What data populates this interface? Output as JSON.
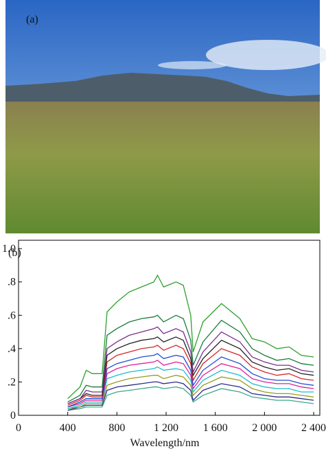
{
  "photo": {
    "label": "(a)"
  },
  "chart_data": {
    "type": "line",
    "panel_label": "(b)",
    "x_label": "Wavelength/nm",
    "x": [
      400,
      500,
      550,
      600,
      680,
      720,
      800,
      900,
      1000,
      1100,
      1130,
      1180,
      1280,
      1340,
      1400,
      1420,
      1500,
      1650,
      1800,
      1900,
      2000,
      2100,
      2200,
      2300,
      2400
    ],
    "series": [
      {
        "color": "#2ca02c",
        "values": [
          0.1,
          0.17,
          0.27,
          0.25,
          0.25,
          0.62,
          0.68,
          0.74,
          0.77,
          0.8,
          0.84,
          0.77,
          0.8,
          0.78,
          0.6,
          0.38,
          0.56,
          0.67,
          0.58,
          0.46,
          0.44,
          0.4,
          0.41,
          0.36,
          0.35
        ]
      },
      {
        "color": "#1a7a3a",
        "values": [
          0.08,
          0.12,
          0.18,
          0.17,
          0.17,
          0.48,
          0.52,
          0.56,
          0.58,
          0.59,
          0.6,
          0.56,
          0.6,
          0.58,
          0.45,
          0.3,
          0.44,
          0.57,
          0.5,
          0.4,
          0.36,
          0.33,
          0.34,
          0.31,
          0.3
        ]
      },
      {
        "color": "#7b2d8e",
        "values": [
          0.07,
          0.1,
          0.15,
          0.14,
          0.14,
          0.4,
          0.44,
          0.48,
          0.5,
          0.52,
          0.53,
          0.49,
          0.52,
          0.5,
          0.38,
          0.26,
          0.38,
          0.5,
          0.44,
          0.35,
          0.32,
          0.3,
          0.3,
          0.27,
          0.26
        ]
      },
      {
        "color": "#222222",
        "values": [
          0.07,
          0.1,
          0.13,
          0.12,
          0.12,
          0.36,
          0.4,
          0.43,
          0.45,
          0.46,
          0.47,
          0.44,
          0.47,
          0.45,
          0.34,
          0.24,
          0.34,
          0.45,
          0.4,
          0.32,
          0.29,
          0.27,
          0.28,
          0.25,
          0.24
        ]
      },
      {
        "color": "#d62728",
        "values": [
          0.06,
          0.09,
          0.12,
          0.11,
          0.11,
          0.32,
          0.36,
          0.38,
          0.4,
          0.41,
          0.42,
          0.39,
          0.42,
          0.4,
          0.31,
          0.21,
          0.31,
          0.4,
          0.36,
          0.29,
          0.26,
          0.24,
          0.25,
          0.22,
          0.21
        ]
      },
      {
        "color": "#1f4fd0",
        "values": [
          0.05,
          0.08,
          0.1,
          0.1,
          0.1,
          0.28,
          0.31,
          0.33,
          0.35,
          0.36,
          0.37,
          0.34,
          0.36,
          0.35,
          0.27,
          0.18,
          0.27,
          0.35,
          0.31,
          0.25,
          0.22,
          0.21,
          0.21,
          0.19,
          0.18
        ]
      },
      {
        "color": "#e0209a",
        "values": [
          0.05,
          0.07,
          0.09,
          0.09,
          0.09,
          0.25,
          0.28,
          0.3,
          0.31,
          0.32,
          0.33,
          0.3,
          0.32,
          0.31,
          0.24,
          0.16,
          0.24,
          0.31,
          0.28,
          0.22,
          0.2,
          0.19,
          0.19,
          0.17,
          0.16
        ]
      },
      {
        "color": "#17becf",
        "values": [
          0.04,
          0.06,
          0.08,
          0.08,
          0.08,
          0.22,
          0.24,
          0.26,
          0.27,
          0.28,
          0.29,
          0.27,
          0.28,
          0.27,
          0.21,
          0.14,
          0.21,
          0.27,
          0.24,
          0.19,
          0.17,
          0.16,
          0.16,
          0.14,
          0.14
        ]
      },
      {
        "color": "#9a9a20",
        "values": [
          0.04,
          0.05,
          0.07,
          0.07,
          0.07,
          0.18,
          0.2,
          0.22,
          0.23,
          0.24,
          0.24,
          0.22,
          0.24,
          0.23,
          0.18,
          0.12,
          0.18,
          0.23,
          0.21,
          0.16,
          0.14,
          0.13,
          0.13,
          0.12,
          0.11
        ]
      },
      {
        "color": "#2a2a8a",
        "values": [
          0.03,
          0.05,
          0.06,
          0.06,
          0.06,
          0.15,
          0.17,
          0.18,
          0.19,
          0.2,
          0.2,
          0.19,
          0.2,
          0.19,
          0.15,
          0.09,
          0.15,
          0.19,
          0.17,
          0.13,
          0.12,
          0.11,
          0.11,
          0.1,
          0.09
        ]
      },
      {
        "color": "#3aa88a",
        "values": [
          0.03,
          0.04,
          0.05,
          0.05,
          0.05,
          0.12,
          0.14,
          0.15,
          0.16,
          0.17,
          0.17,
          0.16,
          0.17,
          0.16,
          0.12,
          0.08,
          0.12,
          0.16,
          0.14,
          0.11,
          0.1,
          0.09,
          0.09,
          0.08,
          0.07
        ]
      }
    ],
    "xlim": [
      0,
      2450
    ],
    "xticks": [
      0,
      400,
      800,
      {
        "value": 1200,
        "label": "1 200"
      },
      {
        "value": 1600,
        "label": "1 600"
      },
      {
        "value": 2000,
        "label": "2 000"
      },
      {
        "value": 2400,
        "label": "2 400"
      }
    ],
    "ylim": [
      0,
      1.05
    ],
    "yticks": [
      0,
      {
        "value": 0.2,
        "label": ".2"
      },
      {
        "value": 0.4,
        "label": ".4"
      },
      {
        "value": 0.6,
        "label": ".6"
      },
      {
        "value": 0.8,
        "label": ".8"
      },
      {
        "value": 1.0,
        "label": "1.0"
      }
    ],
    "grid": false
  }
}
